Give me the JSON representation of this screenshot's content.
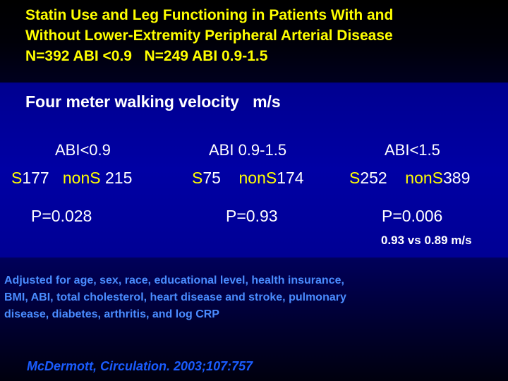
{
  "title": {
    "line1": "Statin Use and Leg Functioning in Patients With and",
    "line2": "Without Lower-Extremity Peripheral Arterial Disease",
    "line3": "N=392 ABI <0.9   N=249 ABI 0.9-1.5"
  },
  "subtitle": "Four meter walking velocity   m/s",
  "groups": [
    {
      "header": "ABI<0.9",
      "statin_prefix": "S",
      "statin_count": "177",
      "nonstatin_prefix": "nonS",
      "nonstatin_count": " 215",
      "p_value": "P=0.028"
    },
    {
      "header": "ABI 0.9-1.5",
      "statin_prefix": "S",
      "statin_count": "75",
      "nonstatin_prefix": "nonS",
      "nonstatin_count": "174",
      "p_value": "P=0.93"
    },
    {
      "header": "ABI<1.5",
      "statin_prefix": "S",
      "statin_count": "252",
      "nonstatin_prefix": "nonS",
      "nonstatin_count": "389",
      "p_value": "P=0.006"
    }
  ],
  "velocity_note": "0.93 vs 0.89 m/s",
  "adjusted": {
    "line1": "Adjusted for age, sex, race, educational level, health insurance,",
    "line2": "BMI, ABI, total cholesterol, heart disease and stroke, pulmonary",
    "line3": "disease, diabetes, arthritis, and log CRP"
  },
  "citation": "McDermott, Circulation. 2003;107:757",
  "colors": {
    "title": "#ffff00",
    "body_text": "#ffffff",
    "statin_highlight": "#ffff00",
    "adjusted_text": "#4a8cff",
    "citation": "#1a5cff",
    "band": "#0000a4"
  }
}
